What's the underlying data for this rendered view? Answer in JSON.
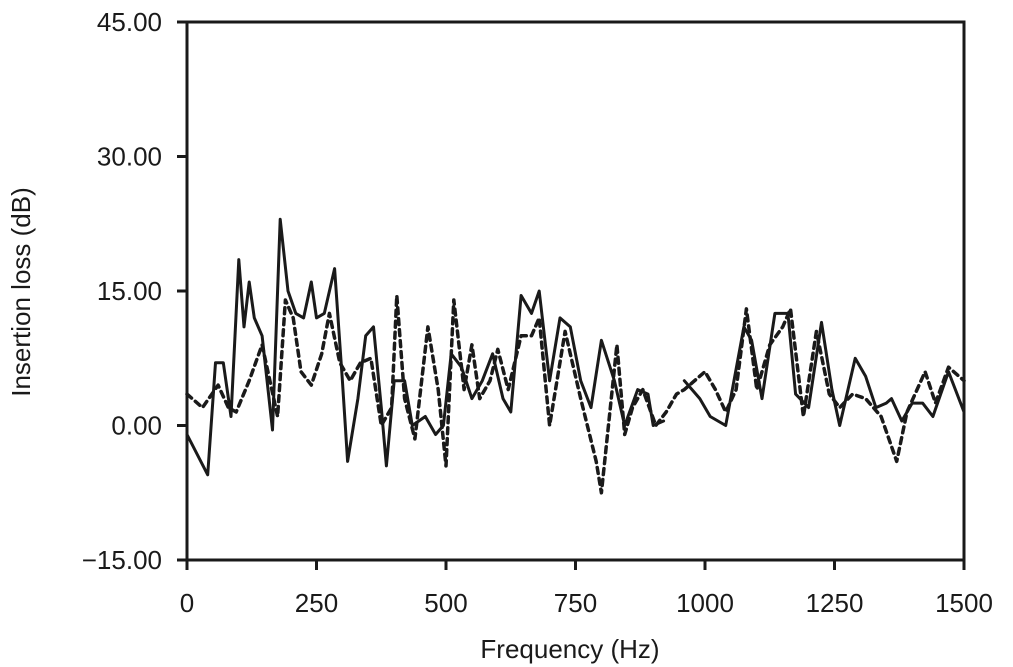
{
  "chart_data": {
    "type": "line",
    "title": "",
    "xlabel": "Frequency (Hz)",
    "ylabel": "Insertion loss (dB)",
    "xlim": [
      0,
      1500
    ],
    "ylim": [
      -15,
      45
    ],
    "grid": false,
    "legend": null,
    "x_ticks": [
      "0",
      "250",
      "500",
      "750",
      "1000",
      "1250",
      "1500"
    ],
    "y_ticks": [
      "−15.00",
      "0.00",
      "15.00",
      "30.00",
      "45.00"
    ],
    "series": [
      {
        "name": "solid",
        "style": "solid",
        "points": [
          [
            0,
            -1
          ],
          [
            40,
            -5.5
          ],
          [
            55,
            7
          ],
          [
            70,
            7
          ],
          [
            85,
            1
          ],
          [
            100,
            18.5
          ],
          [
            110,
            11
          ],
          [
            120,
            16
          ],
          [
            130,
            12
          ],
          [
            145,
            10
          ],
          [
            165,
            -0.5
          ],
          [
            180,
            23
          ],
          [
            195,
            15
          ],
          [
            210,
            12.5
          ],
          [
            225,
            12
          ],
          [
            240,
            16
          ],
          [
            250,
            12
          ],
          [
            265,
            12.5
          ],
          [
            285,
            17.5
          ],
          [
            300,
            5
          ],
          [
            310,
            -4
          ],
          [
            330,
            3
          ],
          [
            345,
            10
          ],
          [
            360,
            11
          ],
          [
            375,
            2
          ],
          [
            385,
            -4.5
          ],
          [
            400,
            5
          ],
          [
            420,
            5
          ],
          [
            435,
            0
          ],
          [
            460,
            1
          ],
          [
            480,
            -1
          ],
          [
            495,
            0
          ],
          [
            510,
            8
          ],
          [
            530,
            6.5
          ],
          [
            550,
            3
          ],
          [
            570,
            5
          ],
          [
            590,
            8
          ],
          [
            610,
            3
          ],
          [
            625,
            1.5
          ],
          [
            645,
            14.5
          ],
          [
            665,
            12.5
          ],
          [
            680,
            15
          ],
          [
            700,
            5
          ],
          [
            720,
            12
          ],
          [
            740,
            11
          ],
          [
            760,
            5
          ],
          [
            780,
            2
          ],
          [
            800,
            9.5
          ],
          [
            825,
            5
          ],
          [
            845,
            0
          ],
          [
            870,
            4
          ],
          [
            890,
            3.5
          ],
          [
            900,
            0
          ],
          [
            920,
            0.5
          ],
          null,
          [
            960,
            5
          ],
          [
            990,
            3
          ],
          [
            1010,
            1
          ],
          [
            1040,
            0
          ],
          [
            1075,
            11
          ],
          [
            1090,
            9.5
          ],
          [
            1110,
            3
          ],
          [
            1135,
            12.5
          ],
          [
            1160,
            12.5
          ],
          [
            1175,
            3.5
          ],
          [
            1200,
            2
          ],
          [
            1225,
            11.5
          ],
          [
            1245,
            4
          ],
          [
            1260,
            0
          ],
          [
            1290,
            7.5
          ],
          [
            1310,
            5.5
          ],
          [
            1330,
            2
          ],
          [
            1350,
            2.5
          ],
          [
            1360,
            3
          ],
          [
            1380,
            0.5
          ],
          [
            1400,
            2.5
          ],
          [
            1420,
            2.5
          ],
          [
            1440,
            1
          ],
          [
            1470,
            6
          ],
          [
            1500,
            1.5
          ]
        ]
      },
      {
        "name": "dashed",
        "style": "dashed",
        "points": [
          [
            0,
            3.5
          ],
          [
            30,
            2
          ],
          [
            60,
            4.5
          ],
          [
            80,
            2
          ],
          [
            95,
            1.5
          ],
          [
            120,
            5
          ],
          [
            145,
            9
          ],
          [
            160,
            5
          ],
          [
            175,
            1
          ],
          [
            190,
            14
          ],
          [
            205,
            12
          ],
          [
            220,
            6
          ],
          [
            240,
            4.5
          ],
          [
            260,
            8
          ],
          [
            275,
            12.5
          ],
          [
            295,
            7
          ],
          [
            315,
            5
          ],
          [
            335,
            7
          ],
          [
            355,
            7.5
          ],
          [
            375,
            0
          ],
          [
            395,
            2
          ],
          [
            405,
            14.5
          ],
          [
            420,
            3
          ],
          [
            440,
            -1.5
          ],
          [
            465,
            11
          ],
          [
            485,
            4
          ],
          [
            500,
            -4.5
          ],
          [
            515,
            14
          ],
          [
            535,
            4
          ],
          [
            550,
            9
          ],
          [
            565,
            3
          ],
          [
            585,
            5
          ],
          [
            600,
            8.5
          ],
          [
            620,
            4
          ],
          [
            645,
            10
          ],
          [
            665,
            10
          ],
          [
            680,
            12
          ],
          [
            700,
            0
          ],
          [
            730,
            10.5
          ],
          [
            760,
            3
          ],
          [
            790,
            -4
          ],
          [
            800,
            -7.5
          ],
          [
            830,
            9
          ],
          [
            845,
            -1
          ],
          [
            860,
            2
          ],
          [
            880,
            4
          ],
          [
            905,
            0
          ],
          [
            925,
            1.5
          ],
          [
            945,
            3.5
          ],
          [
            960,
            4
          ],
          [
            1000,
            6
          ],
          [
            1020,
            4
          ],
          [
            1040,
            1.5
          ],
          [
            1060,
            4
          ],
          [
            1080,
            13
          ],
          [
            1100,
            4
          ],
          [
            1125,
            9
          ],
          [
            1150,
            11
          ],
          [
            1165,
            13
          ],
          [
            1190,
            1
          ],
          [
            1215,
            10.5
          ],
          [
            1240,
            3.5
          ],
          [
            1260,
            2
          ],
          [
            1285,
            3.5
          ],
          [
            1310,
            3
          ],
          [
            1340,
            1
          ],
          [
            1370,
            -4
          ],
          [
            1390,
            1.5
          ],
          [
            1425,
            6
          ],
          [
            1445,
            2.5
          ],
          [
            1470,
            6.5
          ],
          [
            1500,
            5
          ]
        ]
      }
    ],
    "colors": {
      "line": "#1a1a1a",
      "axis": "#1a1a1a",
      "background": "#ffffff"
    }
  }
}
